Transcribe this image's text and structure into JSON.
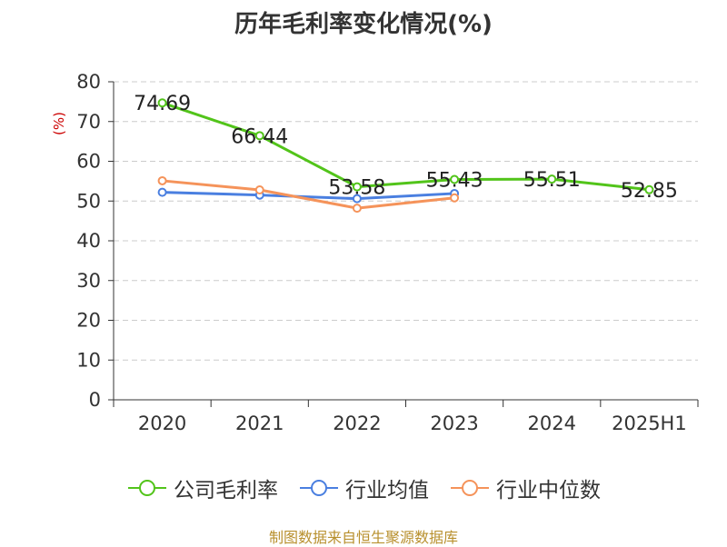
{
  "title": "历年毛利率变化情况(%)",
  "footer": "制图数据来自恒生聚源数据库",
  "chart_data": {
    "type": "line",
    "title": "历年毛利率变化情况(%)",
    "ylabel": "(%)",
    "xlabel": "",
    "categories": [
      "2020",
      "2021",
      "2022",
      "2023",
      "2024",
      "2025H1"
    ],
    "ylim": [
      0,
      80
    ],
    "yticks": [
      0,
      10,
      20,
      30,
      40,
      50,
      60,
      70,
      80
    ],
    "grid": true,
    "legend_position": "bottom",
    "series": [
      {
        "name": "公司毛利率",
        "color": "#52c41a",
        "values": [
          74.69,
          66.44,
          53.58,
          55.43,
          55.51,
          52.85
        ],
        "labels": [
          "74.69",
          "66.44",
          "53.58",
          "55.43",
          "55.51",
          "52.85"
        ]
      },
      {
        "name": "行业均值",
        "color": "#4a7fe0",
        "values": [
          52.2,
          51.5,
          50.6,
          51.9,
          null,
          null
        ]
      },
      {
        "name": "行业中位数",
        "color": "#f5935a",
        "values": [
          55.1,
          52.8,
          48.2,
          50.8,
          null,
          null
        ]
      }
    ]
  }
}
